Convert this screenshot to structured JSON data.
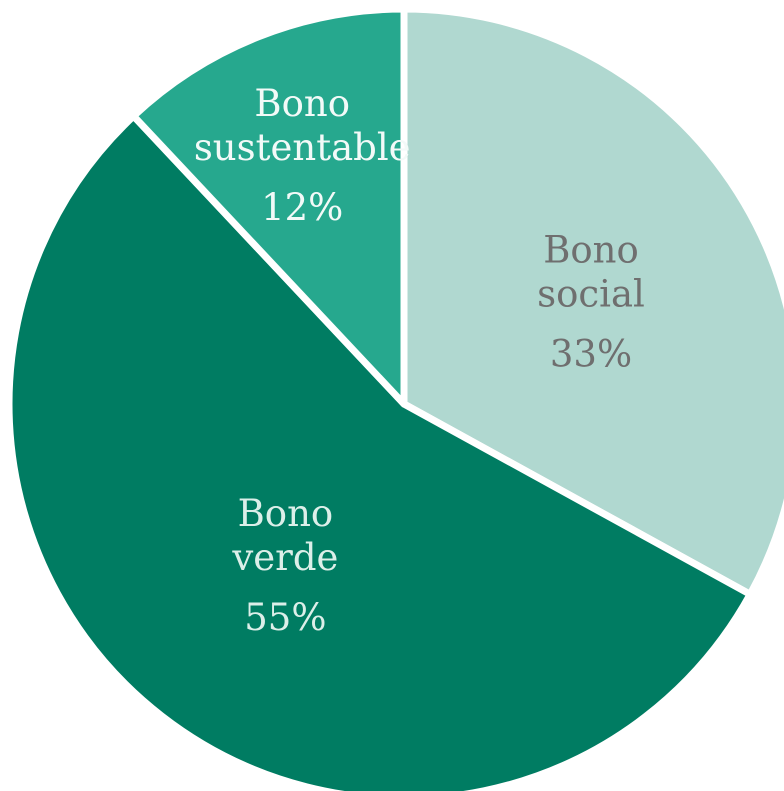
{
  "chart_data": {
    "type": "pie",
    "slices": [
      {
        "label_lines": [
          "Bono",
          "social"
        ],
        "value_text": "33%",
        "value": 33,
        "color": "#b0d8d0",
        "label_color": "#6f6f6f"
      },
      {
        "label_lines": [
          "Bono",
          "verde"
        ],
        "value_text": "55%",
        "value": 55,
        "color": "#007c62",
        "label_color": "#dcefe9"
      },
      {
        "label_lines": [
          "Bono",
          "sustentable"
        ],
        "value_text": "12%",
        "value": 12,
        "color": "#26a88e",
        "label_color": "#f2faf8"
      }
    ],
    "start_angle_deg": 0,
    "direction": "clockwise",
    "separator_color": "#ffffff"
  }
}
